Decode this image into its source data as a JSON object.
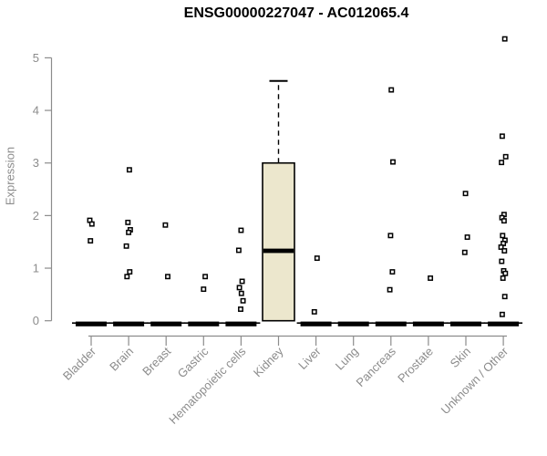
{
  "chart_data": {
    "type": "boxplot",
    "title": "ENSG00000227047 - AC012065.4",
    "ylabel": "Expression",
    "ylim": [
      0,
      5.5
    ],
    "yticks": [
      0,
      1,
      2,
      3,
      4,
      5
    ],
    "grid": false,
    "legend": "none",
    "categories": [
      "Bladder",
      "Brain",
      "Breast",
      "Gastric",
      "Hematopoietic cells",
      "Kidney",
      "Liver",
      "Lung",
      "Pancreas",
      "Prostate",
      "Skin",
      "Unknown / Other"
    ],
    "boxes": [
      {
        "category": "Bladder",
        "q1": 0,
        "median": 0,
        "q3": 0,
        "whisker_low": 0,
        "whisker_high": 0,
        "outliers": [
          1.91,
          1.84,
          1.52
        ]
      },
      {
        "category": "Brain",
        "q1": 0,
        "median": 0,
        "q3": 0,
        "whisker_low": 0,
        "whisker_high": 0,
        "outliers": [
          2.87,
          1.87,
          1.73,
          1.68,
          1.42,
          0.93,
          0.84
        ]
      },
      {
        "category": "Breast",
        "q1": 0,
        "median": 0,
        "q3": 0,
        "whisker_low": 0,
        "whisker_high": 0,
        "outliers": [
          1.82,
          0.84
        ]
      },
      {
        "category": "Gastric",
        "q1": 0,
        "median": 0,
        "q3": 0,
        "whisker_low": 0,
        "whisker_high": 0,
        "outliers": [
          0.84,
          0.6
        ]
      },
      {
        "category": "Hematopoietic cells",
        "q1": 0,
        "median": 0,
        "q3": 0,
        "whisker_low": 0,
        "whisker_high": 0,
        "outliers": [
          1.72,
          1.34,
          0.75,
          0.63,
          0.52,
          0.38,
          0.22
        ]
      },
      {
        "category": "Kidney",
        "q1": 0,
        "median": 1.33,
        "q3": 3.0,
        "whisker_low": 0,
        "whisker_high": 4.56,
        "outliers": []
      },
      {
        "category": "Liver",
        "q1": 0,
        "median": 0,
        "q3": 0,
        "whisker_low": 0,
        "whisker_high": 0,
        "outliers": [
          1.19,
          0.17
        ]
      },
      {
        "category": "Lung",
        "q1": 0,
        "median": 0,
        "q3": 0,
        "whisker_low": 0,
        "whisker_high": 0,
        "outliers": []
      },
      {
        "category": "Pancreas",
        "q1": 0,
        "median": 0,
        "q3": 0,
        "whisker_low": 0,
        "whisker_high": 0,
        "outliers": [
          4.39,
          3.02,
          1.62,
          0.93,
          0.59
        ]
      },
      {
        "category": "Prostate",
        "q1": 0,
        "median": 0,
        "q3": 0,
        "whisker_low": 0,
        "whisker_high": 0,
        "outliers": [
          0.81
        ]
      },
      {
        "category": "Skin",
        "q1": 0,
        "median": 0,
        "q3": 0,
        "whisker_low": 0,
        "whisker_high": 0,
        "outliers": [
          2.42,
          1.59,
          1.3
        ]
      },
      {
        "category": "Unknown / Other",
        "q1": 0,
        "median": 0,
        "q3": 0,
        "whisker_low": 0,
        "whisker_high": 0,
        "outliers": [
          5.36,
          3.51,
          3.12,
          3.01,
          2.02,
          1.96,
          1.9,
          1.62,
          1.53,
          1.47,
          1.4,
          1.33,
          1.13,
          0.95,
          0.9,
          0.81,
          0.46,
          0.12
        ]
      }
    ],
    "colors": {
      "box_fill": "#ece7cd",
      "box_border": "#000000",
      "median": "#000000",
      "point_stroke": "#000000",
      "point_fill": "#ffffff",
      "axis": "#8c8c8c",
      "text": "#8c8c8c",
      "title": "#000000",
      "background": "#ffffff"
    }
  }
}
